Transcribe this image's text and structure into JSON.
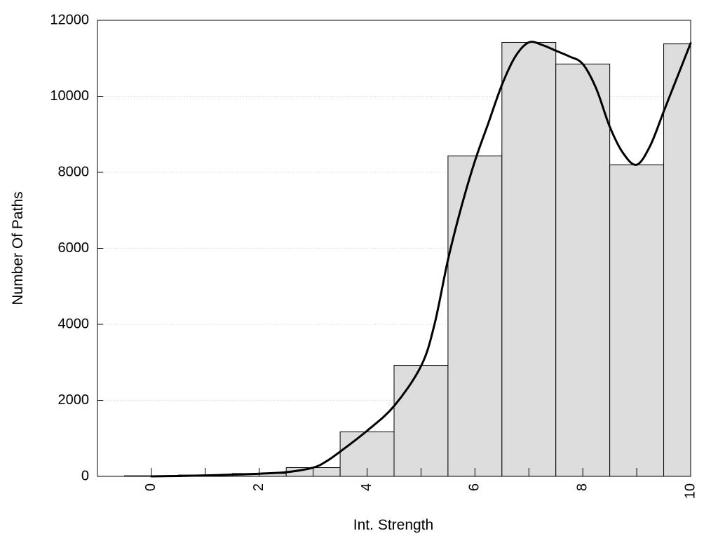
{
  "chart_data": {
    "type": "bar",
    "title": "",
    "xlabel": "Int. Strength",
    "ylabel": "Number Of Paths",
    "xlim": [
      -1,
      10
    ],
    "ylim": [
      0,
      12000
    ],
    "x_ticks": [
      0,
      2,
      4,
      6,
      8,
      10
    ],
    "y_ticks": [
      0,
      2000,
      4000,
      6000,
      8000,
      10000,
      12000
    ],
    "grid": "horizontal-dotted",
    "bar_fill": "#dddddd",
    "bar_edge": "#000000",
    "curve_color": "#000000",
    "bins": [
      {
        "x": 0,
        "value": 15
      },
      {
        "x": 1,
        "value": 35
      },
      {
        "x": 2,
        "value": 75
      },
      {
        "x": 3,
        "value": 230
      },
      {
        "x": 4,
        "value": 1170
      },
      {
        "x": 5,
        "value": 2920
      },
      {
        "x": 6,
        "value": 8430
      },
      {
        "x": 7,
        "value": 11420
      },
      {
        "x": 8,
        "value": 10850
      },
      {
        "x": 9,
        "value": 8200
      },
      {
        "x": 10,
        "value": 11380
      }
    ],
    "curve": {
      "x": [
        0,
        0.5,
        1,
        1.5,
        2,
        2.5,
        3,
        3.25,
        3.5,
        4,
        4.5,
        5,
        5.25,
        5.5,
        5.75,
        6,
        6.25,
        6.5,
        6.75,
        7,
        7.25,
        7.5,
        7.75,
        8,
        8.25,
        8.5,
        8.75,
        9,
        9.25,
        9.5,
        9.75,
        10
      ],
      "y": [
        0,
        10,
        25,
        45,
        70,
        110,
        230,
        400,
        650,
        1200,
        1850,
        2900,
        4000,
        5700,
        7100,
        8300,
        9300,
        10300,
        11050,
        11420,
        11350,
        11200,
        11050,
        10850,
        10200,
        9200,
        8500,
        8200,
        8700,
        9600,
        10500,
        11400
      ]
    }
  }
}
